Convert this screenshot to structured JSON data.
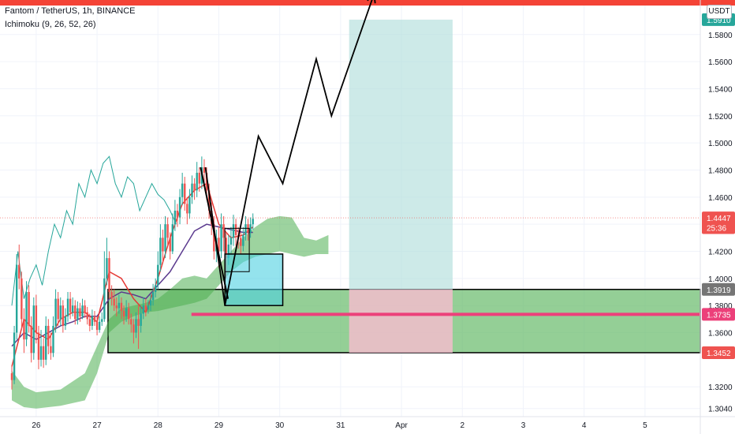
{
  "header": {
    "symbol_line": "Fantom / TetherUS, 1h, BINANCE",
    "indicator_line": "Ichimoku (9, 26, 52, 26)"
  },
  "price_axis": {
    "currency": "USDT"
  },
  "colors": {
    "up_candle": "#26a69a",
    "down_candle": "#ef5350",
    "conversion_line": "#e53935",
    "base_line": "#5b3a8e",
    "lagging_span": "#26a69a",
    "cloud_bull": "#4caf50",
    "target_zone": "#b2dfdb",
    "stop_zone": "#f8bbd0",
    "box_fill": "#4dd0e1",
    "support_zone": "#66bb6a",
    "red_line": "#ec407a",
    "top_line": "#f44336",
    "arrow": "#000000"
  },
  "chart_data": {
    "type": "candlestick",
    "title": "Fantom / TetherUS, 1h, BINANCE",
    "indicator": "Ichimoku (9, 26, 52, 26)",
    "x_ticks": [
      "26",
      "27",
      "28",
      "29",
      "30",
      "31",
      "Apr",
      "2",
      "3",
      "4",
      "5"
    ],
    "y_ticks": [
      1.304,
      1.32,
      1.345,
      1.36,
      1.38,
      1.4,
      1.42,
      1.44,
      1.46,
      1.48,
      1.5,
      1.52,
      1.54,
      1.56,
      1.58
    ],
    "ylim": [
      1.298,
      1.602
    ],
    "price_labels": [
      {
        "text": "1.5910",
        "value": 1.591,
        "color": "#26a69a"
      },
      {
        "text": "1.4447",
        "value": 1.4447,
        "color": "#ef5350"
      },
      {
        "text": "25:36",
        "value": 1.4375,
        "color": "#ef5350"
      },
      {
        "text": "1.3919",
        "value": 1.3919,
        "color": "#757575"
      },
      {
        "text": "1.3735",
        "value": 1.3735,
        "color": "#ec407a"
      },
      {
        "text": "1.3452",
        "value": 1.3452,
        "color": "#ef5350"
      }
    ],
    "candles": [
      [
        25.6,
        1.33,
        1.325,
        1.336,
        1.318
      ],
      [
        25.64,
        1.325,
        1.36,
        1.365,
        1.322
      ],
      [
        25.68,
        1.36,
        1.41,
        1.418,
        1.355
      ],
      [
        25.72,
        1.41,
        1.4,
        1.425,
        1.392
      ],
      [
        25.76,
        1.4,
        1.37,
        1.405,
        1.362
      ],
      [
        25.8,
        1.37,
        1.355,
        1.378,
        1.345
      ],
      [
        25.84,
        1.355,
        1.39,
        1.398,
        1.35
      ],
      [
        25.88,
        1.39,
        1.365,
        1.395,
        1.36
      ],
      [
        25.92,
        1.365,
        1.345,
        1.372,
        1.338
      ],
      [
        25.96,
        1.345,
        1.38,
        1.386,
        1.34
      ],
      [
        26.0,
        1.38,
        1.36,
        1.388,
        1.352
      ],
      [
        26.04,
        1.36,
        1.34,
        1.365,
        1.333
      ],
      [
        26.08,
        1.34,
        1.35,
        1.362,
        1.335
      ],
      [
        26.12,
        1.35,
        1.34,
        1.356,
        1.334
      ],
      [
        26.16,
        1.34,
        1.365,
        1.372,
        1.336
      ],
      [
        26.2,
        1.365,
        1.35,
        1.37,
        1.344
      ],
      [
        26.24,
        1.35,
        1.345,
        1.36,
        1.34
      ],
      [
        26.28,
        1.345,
        1.365,
        1.372,
        1.342
      ],
      [
        26.32,
        1.365,
        1.385,
        1.392,
        1.36
      ],
      [
        26.36,
        1.385,
        1.37,
        1.39,
        1.365
      ],
      [
        26.4,
        1.37,
        1.38,
        1.386,
        1.365
      ],
      [
        26.44,
        1.38,
        1.365,
        1.384,
        1.36
      ],
      [
        26.48,
        1.365,
        1.372,
        1.378,
        1.362
      ],
      [
        26.52,
        1.372,
        1.385,
        1.39,
        1.368
      ],
      [
        26.56,
        1.385,
        1.375,
        1.39,
        1.37
      ],
      [
        26.6,
        1.375,
        1.38,
        1.386,
        1.372
      ],
      [
        26.64,
        1.38,
        1.37,
        1.384,
        1.366
      ],
      [
        26.68,
        1.37,
        1.378,
        1.383,
        1.366
      ],
      [
        26.72,
        1.378,
        1.372,
        1.382,
        1.368
      ],
      [
        26.76,
        1.372,
        1.38,
        1.385,
        1.37
      ],
      [
        26.8,
        1.38,
        1.375,
        1.384,
        1.371
      ],
      [
        26.84,
        1.375,
        1.37,
        1.379,
        1.366
      ],
      [
        26.88,
        1.37,
        1.365,
        1.374,
        1.361
      ],
      [
        26.92,
        1.365,
        1.372,
        1.377,
        1.362
      ],
      [
        26.96,
        1.372,
        1.368,
        1.376,
        1.365
      ],
      [
        27.0,
        1.368,
        1.362,
        1.372,
        1.358
      ],
      [
        27.04,
        1.362,
        1.368,
        1.372,
        1.36
      ],
      [
        27.08,
        1.368,
        1.37,
        1.375,
        1.365
      ],
      [
        27.12,
        1.37,
        1.4,
        1.42,
        1.368
      ],
      [
        27.16,
        1.4,
        1.415,
        1.43,
        1.395
      ],
      [
        27.2,
        1.415,
        1.39,
        1.42,
        1.385
      ],
      [
        27.24,
        1.39,
        1.385,
        1.395,
        1.38
      ],
      [
        27.28,
        1.385,
        1.38,
        1.392,
        1.376
      ],
      [
        27.32,
        1.38,
        1.378,
        1.386,
        1.372
      ],
      [
        27.36,
        1.378,
        1.382,
        1.388,
        1.374
      ],
      [
        27.4,
        1.382,
        1.376,
        1.386,
        1.37
      ],
      [
        27.44,
        1.376,
        1.372,
        1.38,
        1.366
      ],
      [
        27.48,
        1.372,
        1.378,
        1.384,
        1.368
      ],
      [
        27.52,
        1.378,
        1.37,
        1.382,
        1.366
      ],
      [
        27.56,
        1.37,
        1.366,
        1.374,
        1.36
      ],
      [
        27.6,
        1.366,
        1.36,
        1.37,
        1.352
      ],
      [
        27.64,
        1.36,
        1.37,
        1.375,
        1.356
      ],
      [
        27.68,
        1.37,
        1.365,
        1.38,
        1.348
      ],
      [
        27.72,
        1.365,
        1.374,
        1.38,
        1.36
      ],
      [
        27.76,
        1.374,
        1.38,
        1.386,
        1.37
      ],
      [
        27.8,
        1.38,
        1.377,
        1.385,
        1.372
      ],
      [
        27.84,
        1.377,
        1.38,
        1.384,
        1.374
      ],
      [
        27.88,
        1.38,
        1.384,
        1.388,
        1.376
      ],
      [
        27.92,
        1.384,
        1.39,
        1.396,
        1.38
      ],
      [
        27.96,
        1.39,
        1.395,
        1.4,
        1.386
      ],
      [
        28.0,
        1.395,
        1.41,
        1.42,
        1.392
      ],
      [
        28.04,
        1.41,
        1.43,
        1.44,
        1.405
      ],
      [
        28.08,
        1.43,
        1.42,
        1.436,
        1.412
      ],
      [
        28.12,
        1.42,
        1.44,
        1.446,
        1.415
      ],
      [
        28.16,
        1.44,
        1.43,
        1.445,
        1.424
      ],
      [
        28.2,
        1.43,
        1.42,
        1.434,
        1.414
      ],
      [
        28.24,
        1.42,
        1.44,
        1.448,
        1.418
      ],
      [
        28.28,
        1.44,
        1.45,
        1.458,
        1.435
      ],
      [
        28.32,
        1.45,
        1.445,
        1.455,
        1.438
      ],
      [
        28.36,
        1.445,
        1.46,
        1.466,
        1.44
      ],
      [
        28.4,
        1.46,
        1.47,
        1.478,
        1.454
      ],
      [
        28.44,
        1.47,
        1.455,
        1.475,
        1.45
      ],
      [
        28.48,
        1.455,
        1.448,
        1.46,
        1.44
      ],
      [
        28.52,
        1.448,
        1.46,
        1.466,
        1.444
      ],
      [
        28.56,
        1.46,
        1.47,
        1.476,
        1.455
      ],
      [
        28.6,
        1.47,
        1.465,
        1.474,
        1.458
      ],
      [
        28.64,
        1.465,
        1.478,
        1.486,
        1.46
      ],
      [
        28.68,
        1.478,
        1.47,
        1.482,
        1.464
      ],
      [
        28.72,
        1.47,
        1.482,
        1.49,
        1.466
      ],
      [
        28.76,
        1.482,
        1.478,
        1.488,
        1.47
      ],
      [
        28.8,
        1.478,
        1.465,
        1.482,
        1.458
      ],
      [
        28.84,
        1.465,
        1.45,
        1.47,
        1.444
      ],
      [
        28.88,
        1.45,
        1.44,
        1.456,
        1.432
      ],
      [
        28.92,
        1.44,
        1.42,
        1.446,
        1.414
      ],
      [
        28.96,
        1.42,
        1.43,
        1.436,
        1.412
      ],
      [
        29.0,
        1.43,
        1.42,
        1.438,
        1.408
      ],
      [
        29.04,
        1.42,
        1.44,
        1.448,
        1.415
      ],
      [
        29.08,
        1.44,
        1.43,
        1.446,
        1.42
      ],
      [
        29.12,
        1.43,
        1.415,
        1.434,
        1.4
      ],
      [
        29.16,
        1.415,
        1.425,
        1.432,
        1.41
      ],
      [
        29.2,
        1.425,
        1.43,
        1.438,
        1.418
      ],
      [
        29.24,
        1.43,
        1.44,
        1.447,
        1.424
      ],
      [
        29.28,
        1.44,
        1.432,
        1.444,
        1.424
      ],
      [
        29.32,
        1.432,
        1.43,
        1.438,
        1.422
      ],
      [
        29.36,
        1.43,
        1.424,
        1.434,
        1.418
      ],
      [
        29.4,
        1.424,
        1.432,
        1.438,
        1.42
      ],
      [
        29.44,
        1.432,
        1.44,
        1.446,
        1.428
      ],
      [
        29.48,
        1.44,
        1.434,
        1.444,
        1.428
      ],
      [
        29.52,
        1.434,
        1.44,
        1.445,
        1.43
      ],
      [
        29.56,
        1.44,
        1.444,
        1.448,
        1.436
      ]
    ],
    "ichimoku": {
      "conversion_line": [
        [
          25.6,
          1.335
        ],
        [
          25.8,
          1.37
        ],
        [
          26.0,
          1.36
        ],
        [
          26.2,
          1.355
        ],
        [
          26.4,
          1.37
        ],
        [
          26.6,
          1.375
        ],
        [
          26.8,
          1.375
        ],
        [
          27.0,
          1.368
        ],
        [
          27.2,
          1.405
        ],
        [
          27.4,
          1.4
        ],
        [
          27.6,
          1.385
        ],
        [
          27.8,
          1.375
        ],
        [
          28.0,
          1.4
        ],
        [
          28.2,
          1.43
        ],
        [
          28.4,
          1.455
        ],
        [
          28.6,
          1.465
        ],
        [
          28.8,
          1.47
        ],
        [
          29.0,
          1.44
        ],
        [
          29.2,
          1.43
        ],
        [
          29.4,
          1.432
        ],
        [
          29.56,
          1.438
        ]
      ],
      "base_line": [
        [
          25.6,
          1.35
        ],
        [
          25.8,
          1.36
        ],
        [
          26.0,
          1.355
        ],
        [
          26.2,
          1.36
        ],
        [
          26.4,
          1.365
        ],
        [
          26.6,
          1.368
        ],
        [
          26.8,
          1.372
        ],
        [
          27.0,
          1.372
        ],
        [
          27.2,
          1.385
        ],
        [
          27.4,
          1.39
        ],
        [
          27.6,
          1.388
        ],
        [
          27.8,
          1.385
        ],
        [
          28.0,
          1.395
        ],
        [
          28.2,
          1.405
        ],
        [
          28.4,
          1.42
        ],
        [
          28.6,
          1.435
        ],
        [
          28.8,
          1.44
        ],
        [
          29.0,
          1.438
        ],
        [
          29.2,
          1.436
        ],
        [
          29.4,
          1.434
        ],
        [
          29.56,
          1.434
        ]
      ],
      "lagging_span": [
        [
          25.6,
          1.38
        ],
        [
          25.7,
          1.42
        ],
        [
          25.8,
          1.385
        ],
        [
          25.9,
          1.4
        ],
        [
          26.0,
          1.41
        ],
        [
          26.1,
          1.395
        ],
        [
          26.2,
          1.42
        ],
        [
          26.3,
          1.44
        ],
        [
          26.4,
          1.43
        ],
        [
          26.5,
          1.45
        ],
        [
          26.6,
          1.44
        ],
        [
          26.7,
          1.47
        ],
        [
          26.8,
          1.46
        ],
        [
          26.9,
          1.48
        ],
        [
          27.0,
          1.47
        ],
        [
          27.1,
          1.485
        ],
        [
          27.2,
          1.49
        ],
        [
          27.3,
          1.47
        ],
        [
          27.4,
          1.46
        ],
        [
          27.5,
          1.475
        ],
        [
          27.6,
          1.47
        ],
        [
          27.7,
          1.45
        ],
        [
          27.8,
          1.46
        ],
        [
          27.9,
          1.47
        ],
        [
          28.0,
          1.462
        ],
        [
          28.1,
          1.458
        ],
        [
          28.2,
          1.45
        ],
        [
          28.3,
          1.44
        ]
      ],
      "cloud_top": [
        [
          25.6,
          1.332
        ],
        [
          25.8,
          1.32
        ],
        [
          26.0,
          1.316
        ],
        [
          26.4,
          1.318
        ],
        [
          26.8,
          1.33
        ],
        [
          27.0,
          1.35
        ],
        [
          27.2,
          1.37
        ],
        [
          27.4,
          1.378
        ],
        [
          27.6,
          1.38
        ],
        [
          27.8,
          1.382
        ],
        [
          28.0,
          1.385
        ],
        [
          28.2,
          1.392
        ],
        [
          28.4,
          1.4
        ],
        [
          28.6,
          1.402
        ],
        [
          28.8,
          1.4
        ],
        [
          29.0,
          1.41
        ],
        [
          29.2,
          1.42
        ],
        [
          29.4,
          1.43
        ],
        [
          29.6,
          1.438
        ],
        [
          29.8,
          1.444
        ],
        [
          30.0,
          1.446
        ],
        [
          30.2,
          1.445
        ],
        [
          30.4,
          1.43
        ],
        [
          30.6,
          1.428
        ],
        [
          30.8,
          1.432
        ]
      ],
      "cloud_bottom": [
        [
          25.6,
          1.31
        ],
        [
          25.8,
          1.305
        ],
        [
          26.0,
          1.304
        ],
        [
          26.4,
          1.306
        ],
        [
          26.8,
          1.31
        ],
        [
          27.0,
          1.33
        ],
        [
          27.2,
          1.36
        ],
        [
          27.4,
          1.368
        ],
        [
          27.6,
          1.372
        ],
        [
          27.8,
          1.375
        ],
        [
          28.0,
          1.376
        ],
        [
          28.2,
          1.378
        ],
        [
          28.4,
          1.38
        ],
        [
          28.6,
          1.382
        ],
        [
          28.8,
          1.385
        ],
        [
          29.0,
          1.395
        ],
        [
          29.2,
          1.405
        ],
        [
          29.4,
          1.412
        ],
        [
          29.6,
          1.416
        ],
        [
          29.8,
          1.418
        ],
        [
          30.0,
          1.42
        ],
        [
          30.2,
          1.418
        ],
        [
          30.4,
          1.416
        ],
        [
          30.6,
          1.418
        ],
        [
          30.8,
          1.418
        ]
      ]
    },
    "drawings": {
      "top_line_value": 1.602,
      "support_zone": {
        "x_from": 27.18,
        "y_low": 1.3452,
        "y_high": 1.3919
      },
      "red_line": {
        "x_from": 28.55,
        "value": 1.3735
      },
      "target_zone": {
        "x_from": 31.14,
        "x_to": 32.84,
        "y_low": 1.3919,
        "y_high": 1.591
      },
      "stop_zone": {
        "x_from": 31.14,
        "x_to": 32.84,
        "y_low": 1.3452,
        "y_high": 1.3919
      },
      "cyan_box": {
        "x_from": 29.1,
        "x_to": 30.05,
        "y_low": 1.38,
        "y_high": 1.418
      },
      "small_box": {
        "x_from": 29.1,
        "x_to": 29.5,
        "y_low": 1.405,
        "y_high": 1.437
      },
      "forecast_path": [
        [
          28.78,
          1.482
        ],
        [
          29.1,
          1.38
        ],
        [
          29.65,
          1.505
        ],
        [
          30.05,
          1.47
        ],
        [
          30.6,
          1.562
        ],
        [
          30.85,
          1.52
        ],
        [
          31.55,
          1.61
        ]
      ],
      "drop_line": [
        [
          28.7,
          1.482
        ],
        [
          29.15,
          1.385
        ]
      ]
    }
  }
}
